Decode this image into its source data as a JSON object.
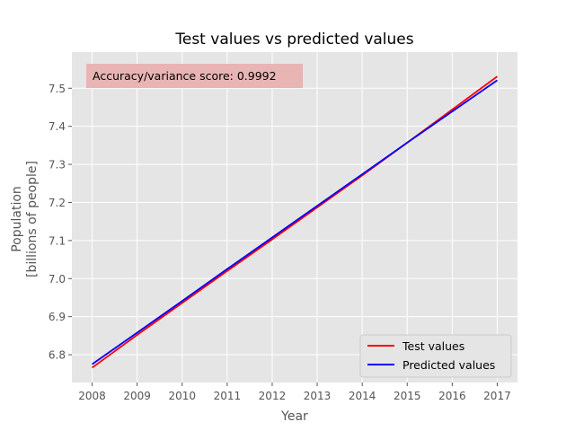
{
  "chart_data": {
    "type": "line",
    "title": "Test values vs predicted values",
    "xlabel": "Year",
    "ylabel_lines": [
      "Population",
      "[billions of people]"
    ],
    "x": [
      2008,
      2009,
      2010,
      2011,
      2012,
      2013,
      2014,
      2015,
      2016,
      2017
    ],
    "xticks": [
      "2008",
      "2009",
      "2010",
      "2011",
      "2012",
      "2013",
      "2014",
      "2015",
      "2016",
      "2017"
    ],
    "yticks": [
      "6.8",
      "6.9",
      "7.0",
      "7.1",
      "7.2",
      "7.3",
      "7.4",
      "7.5"
    ],
    "xlim": [
      2007.55,
      2017.45
    ],
    "ylim": [
      6.727,
      7.595
    ],
    "grid": true,
    "legend_placement": "lower-right",
    "series": [
      {
        "name": "Test values",
        "color": "#ff0000",
        "values": [
          6.766,
          6.852,
          6.936,
          7.02,
          7.103,
          7.187,
          7.271,
          7.357,
          7.444,
          7.531
        ]
      },
      {
        "name": "Predicted values",
        "color": "#0000ff",
        "values": [
          6.775,
          6.858,
          6.941,
          7.025,
          7.108,
          7.191,
          7.274,
          7.357,
          7.439,
          7.521
        ]
      }
    ],
    "annotation": "Accuracy/variance score: 0.9992"
  },
  "colors": {
    "plot_background": "#e5e5e5",
    "grid": "#ffffff",
    "annotation_box": "#e8b4b4"
  }
}
